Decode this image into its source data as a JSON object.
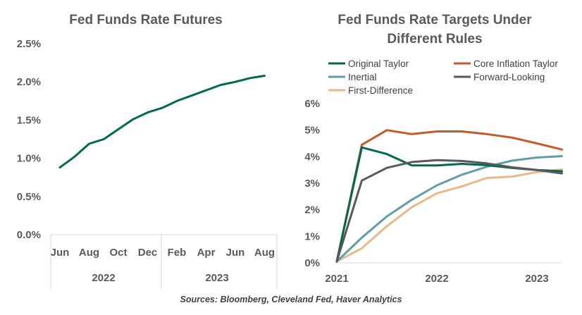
{
  "source": "Sources: Bloomberg,  Cleveland Fed, Haver Analytics",
  "chart_data": [
    {
      "type": "line",
      "title": "Fed Funds Rate Futures",
      "x_ticks": [
        "Jun",
        "Aug",
        "Oct",
        "Dec",
        "Feb",
        "Apr",
        "Jun",
        "Aug"
      ],
      "year_labels": [
        "2022",
        "2023"
      ],
      "y_ticks": [
        "0.0%",
        "0.5%",
        "1.0%",
        "1.5%",
        "2.0%",
        "2.5%"
      ],
      "ylim": [
        0,
        2.5
      ],
      "grid": false,
      "series": [
        {
          "name": "Fed Funds Rate Futures",
          "color": "#006a4e",
          "values": [
            0.88,
            1.02,
            1.19,
            1.25,
            1.38,
            1.51,
            1.6,
            1.66,
            1.75,
            1.82,
            1.89,
            1.96,
            2.0,
            2.05,
            2.08
          ]
        }
      ]
    },
    {
      "type": "line",
      "title": "Fed Funds Rate Targets Under Different Rules",
      "title_lines": [
        "Fed Funds Rate Targets Under",
        "Different Rules"
      ],
      "x_ticks": [
        "2021",
        "2022",
        "2023"
      ],
      "y_ticks": [
        "0%",
        "1%",
        "2%",
        "3%",
        "4%",
        "5%",
        "6%"
      ],
      "ylim": [
        0,
        6
      ],
      "grid": false,
      "legend": "top",
      "series": [
        {
          "name": "Original Taylor",
          "color": "#006a4e",
          "x": [
            2021.0,
            2021.25,
            2021.5,
            2021.75,
            2022.0,
            2022.25,
            2022.5,
            2022.75,
            2023.0,
            2023.25
          ],
          "values": [
            0.05,
            4.35,
            4.1,
            3.67,
            3.67,
            3.73,
            3.68,
            3.58,
            3.5,
            3.45
          ]
        },
        {
          "name": "Core Inflation Taylor",
          "color": "#c55a28",
          "x": [
            2021.0,
            2021.25,
            2021.5,
            2021.75,
            2022.0,
            2022.25,
            2022.5,
            2022.75,
            2023.0,
            2023.25
          ],
          "values": [
            0.05,
            4.45,
            5.0,
            4.85,
            4.95,
            4.95,
            4.85,
            4.72,
            4.5,
            4.27
          ]
        },
        {
          "name": "Inertial",
          "color": "#5f9ea8",
          "x": [
            2021.0,
            2021.25,
            2021.5,
            2021.75,
            2022.0,
            2022.25,
            2022.5,
            2022.75,
            2023.0,
            2023.25
          ],
          "values": [
            0.05,
            0.95,
            1.75,
            2.38,
            2.92,
            3.32,
            3.62,
            3.85,
            3.97,
            4.02
          ]
        },
        {
          "name": "Forward-Looking",
          "color": "#595959",
          "x": [
            2021.0,
            2021.25,
            2021.5,
            2021.75,
            2022.0,
            2022.25,
            2022.5,
            2022.75,
            2023.0,
            2023.25
          ],
          "values": [
            0.05,
            3.1,
            3.58,
            3.8,
            3.87,
            3.84,
            3.75,
            3.6,
            3.5,
            3.37
          ]
        },
        {
          "name": "First-Difference",
          "color": "#e8b98a",
          "x": [
            2021.0,
            2021.25,
            2021.5,
            2021.75,
            2022.0,
            2022.25,
            2022.5,
            2022.75,
            2023.0,
            2023.25
          ],
          "values": [
            0.05,
            0.55,
            1.38,
            2.1,
            2.62,
            2.88,
            3.2,
            3.25,
            3.42,
            3.52
          ]
        }
      ]
    }
  ]
}
